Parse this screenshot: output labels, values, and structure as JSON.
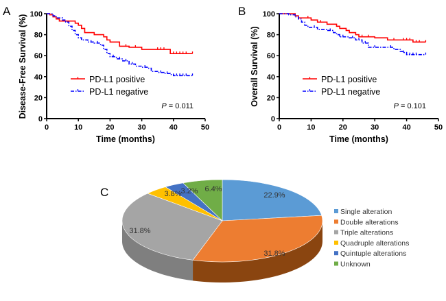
{
  "chart_data": [
    {
      "id": "A",
      "type": "line",
      "panel_label": "A",
      "title": "",
      "xlabel": "Time (months)",
      "ylabel": "Disease-Free Survival (%)",
      "xlim": [
        0,
        50
      ],
      "ylim": [
        0,
        100
      ],
      "xticks": [
        "0",
        "10",
        "20",
        "30",
        "40",
        "50"
      ],
      "yticks": [
        "0",
        "20",
        "40",
        "60",
        "80",
        "100"
      ],
      "grid": false,
      "legend_position": "center-left",
      "annotation": {
        "italic": "P",
        "rest": " = 0.011"
      },
      "series": [
        {
          "name": "PD-L1 positive",
          "color": "#ff0000",
          "style": "solid",
          "steps": [
            [
              0,
              100
            ],
            [
              1,
              99
            ],
            [
              2,
              97
            ],
            [
              3,
              95
            ],
            [
              4,
              93
            ],
            [
              7,
              93
            ],
            [
              9,
              91
            ],
            [
              10,
              89
            ],
            [
              11,
              86
            ],
            [
              12,
              82
            ],
            [
              15,
              80
            ],
            [
              18,
              78
            ],
            [
              19,
              75
            ],
            [
              20,
              73
            ],
            [
              23,
              69
            ],
            [
              26,
              68
            ],
            [
              30,
              66
            ],
            [
              39,
              66
            ],
            [
              39,
              62
            ],
            [
              46,
              62
            ]
          ],
          "censor_x": [
            12,
            18,
            25,
            28,
            35,
            36,
            37,
            40,
            41,
            42,
            43,
            44,
            46
          ]
        },
        {
          "name": "PD-L1 negative",
          "color": "#0000ff",
          "style": "dash-dot",
          "steps": [
            [
              0,
              100
            ],
            [
              2,
              98
            ],
            [
              3,
              96
            ],
            [
              5,
              94
            ],
            [
              6,
              92
            ],
            [
              7,
              88
            ],
            [
              8,
              84
            ],
            [
              9,
              80
            ],
            [
              10,
              77
            ],
            [
              11,
              75
            ],
            [
              13,
              73
            ],
            [
              15,
              72
            ],
            [
              17,
              70
            ],
            [
              18,
              66
            ],
            [
              19,
              62
            ],
            [
              20,
              59
            ],
            [
              22,
              57
            ],
            [
              24,
              55
            ],
            [
              26,
              52
            ],
            [
              28,
              50
            ],
            [
              30,
              49
            ],
            [
              32,
              48
            ],
            [
              33,
              45
            ],
            [
              35,
              44
            ],
            [
              37,
              43
            ],
            [
              39,
              42
            ],
            [
              40,
              41
            ],
            [
              46,
              41
            ]
          ],
          "censor_x": [
            11,
            14,
            16,
            21,
            23,
            25,
            27,
            31,
            36,
            38,
            40,
            41,
            42,
            43,
            44,
            46
          ]
        }
      ]
    },
    {
      "id": "B",
      "type": "line",
      "panel_label": "B",
      "title": "",
      "xlabel": "Time (months)",
      "ylabel": "Overall Survival (%)",
      "xlim": [
        0,
        50
      ],
      "ylim": [
        0,
        100
      ],
      "xticks": [
        "0",
        "10",
        "20",
        "30",
        "40",
        "50"
      ],
      "yticks": [
        "0",
        "20",
        "40",
        "60",
        "80",
        "100"
      ],
      "grid": false,
      "legend_position": "center-left",
      "annotation": {
        "italic": "P",
        "rest": " = 0.101"
      },
      "series": [
        {
          "name": "PD-L1 positive",
          "color": "#ff0000",
          "style": "solid",
          "steps": [
            [
              0,
              100
            ],
            [
              5,
              98
            ],
            [
              6,
              96
            ],
            [
              10,
              94
            ],
            [
              12,
              92
            ],
            [
              15,
              90
            ],
            [
              18,
              88
            ],
            [
              19,
              86
            ],
            [
              21,
              84
            ],
            [
              22,
              82
            ],
            [
              24,
              80
            ],
            [
              25,
              78
            ],
            [
              30,
              77
            ],
            [
              34,
              75
            ],
            [
              41,
              75
            ],
            [
              42,
              73
            ],
            [
              46,
              73
            ]
          ],
          "censor_x": [
            9,
            13,
            19,
            26,
            28,
            36,
            39,
            40,
            41,
            42,
            43,
            44,
            46
          ]
        },
        {
          "name": "PD-L1 negative",
          "color": "#0000ff",
          "style": "dash-dot",
          "steps": [
            [
              0,
              100
            ],
            [
              3,
              99
            ],
            [
              5,
              97
            ],
            [
              6,
              95
            ],
            [
              7,
              92
            ],
            [
              8,
              89
            ],
            [
              9,
              87
            ],
            [
              12,
              85
            ],
            [
              15,
              84
            ],
            [
              17,
              82
            ],
            [
              18,
              80
            ],
            [
              19,
              78
            ],
            [
              22,
              77
            ],
            [
              24,
              75
            ],
            [
              26,
              72
            ],
            [
              28,
              68
            ],
            [
              34,
              68
            ],
            [
              36,
              66
            ],
            [
              38,
              64
            ],
            [
              39,
              63
            ],
            [
              40,
              61
            ],
            [
              46,
              61
            ]
          ],
          "censor_x": [
            11,
            16,
            19,
            20,
            23,
            25,
            27,
            30,
            35,
            39,
            41,
            42,
            43,
            46
          ]
        }
      ]
    },
    {
      "id": "C",
      "type": "pie",
      "panel_label": "C",
      "title": "",
      "legend_position": "right",
      "categories": [
        "Single alteration",
        "Double alterations",
        "Triple alterations",
        "Quadruple alterations",
        "Quintuple alterations",
        "Unknown"
      ],
      "values": [
        22.9,
        31.8,
        31.8,
        3.8,
        3.2,
        6.4
      ],
      "labels": [
        "22.9%",
        "31.8%",
        "31.8%",
        "3.8%",
        "3.2%",
        "6.4%"
      ],
      "colors": [
        "#5b9bd5",
        "#ed7d31",
        "#a5a5a5",
        "#ffc000",
        "#4472c4",
        "#70ad47"
      ],
      "side_colors": [
        "#3e7ab3",
        "#8a4510",
        "#7f7f7f",
        "#bf9000",
        "#2f528f",
        "#507e32"
      ],
      "style": "3d"
    }
  ]
}
